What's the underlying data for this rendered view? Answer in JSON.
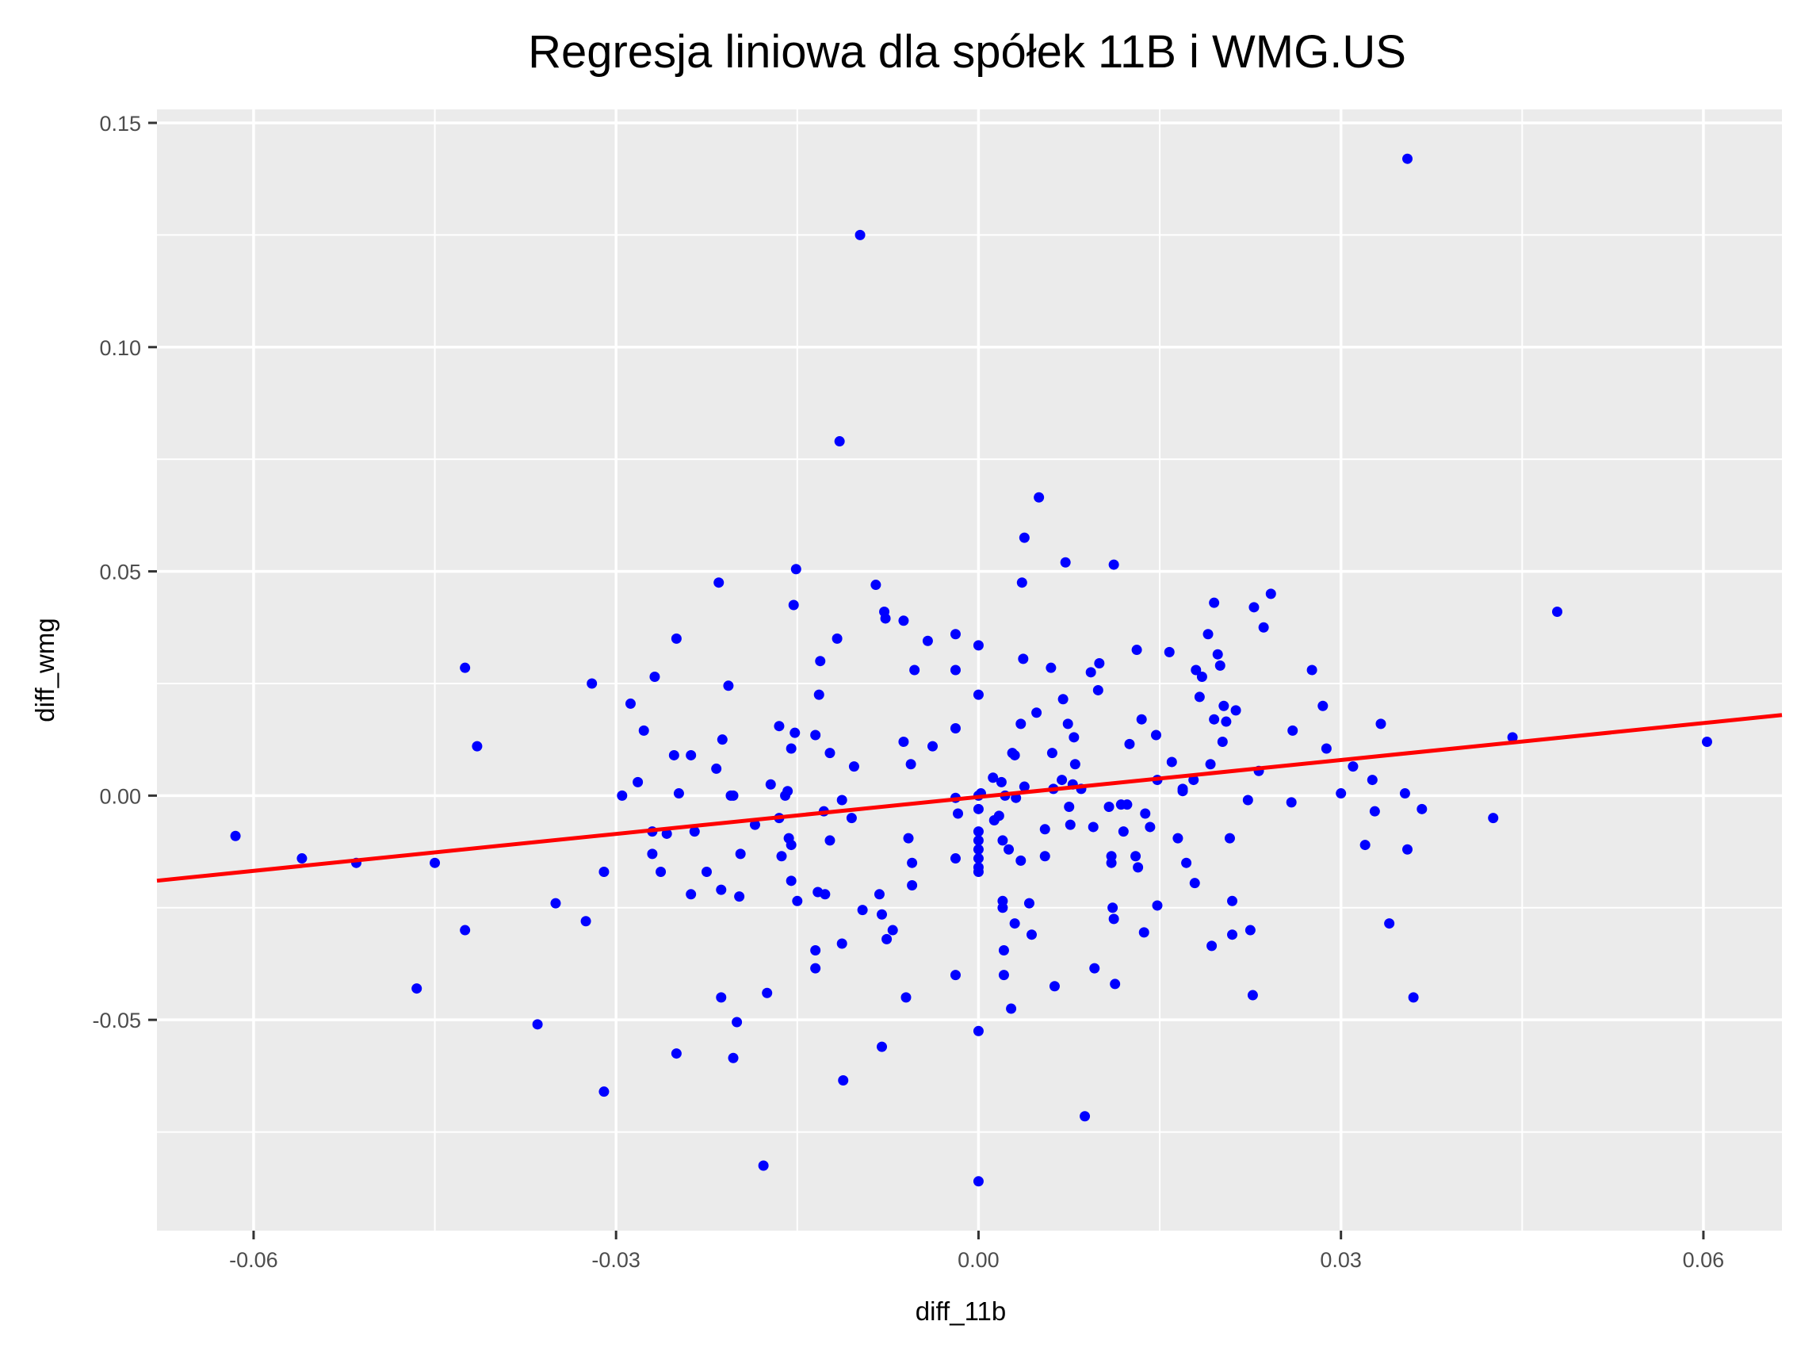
{
  "chart_data": {
    "type": "scatter",
    "title": "Regresja liniowa dla spółek 11B i WMG.US",
    "xlabel": "diff_11b",
    "ylabel": "diff_wmg",
    "xlim": [
      -0.068,
      0.0665
    ],
    "ylim": [
      -0.097,
      0.153
    ],
    "x_ticks": [
      -0.06,
      -0.03,
      0.0,
      0.03,
      0.06
    ],
    "x_tick_labels": [
      "-0.06",
      "-0.03",
      "0.00",
      "0.03",
      "0.06"
    ],
    "y_ticks": [
      -0.05,
      0.0,
      0.05,
      0.1,
      0.15
    ],
    "y_tick_labels": [
      "-0.05",
      "0.00",
      "0.05",
      "0.10",
      "0.15"
    ],
    "grid": true,
    "point_color": "#0000ff",
    "line_color": "#ff0000",
    "panel_color": "#ebebeb",
    "regression": {
      "intercept": -0.0003,
      "slope": 0.2746
    },
    "points": [
      {
        "x": -0.0615,
        "y": -0.009
      },
      {
        "x": -0.056,
        "y": -0.014
      },
      {
        "x": -0.0515,
        "y": -0.015
      },
      {
        "x": -0.0465,
        "y": -0.043
      },
      {
        "x": -0.045,
        "y": -0.015
      },
      {
        "x": -0.0425,
        "y": -0.03
      },
      {
        "x": -0.0425,
        "y": 0.0285
      },
      {
        "x": -0.0415,
        "y": 0.011
      },
      {
        "x": -0.0365,
        "y": -0.051
      },
      {
        "x": -0.035,
        "y": -0.024
      },
      {
        "x": -0.0325,
        "y": -0.028
      },
      {
        "x": -0.032,
        "y": 0.025
      },
      {
        "x": -0.031,
        "y": -0.017
      },
      {
        "x": -0.031,
        "y": -0.066
      },
      {
        "x": -0.0295,
        "y": 0.0
      },
      {
        "x": -0.0288,
        "y": 0.0205
      },
      {
        "x": -0.0282,
        "y": 0.003
      },
      {
        "x": -0.0277,
        "y": 0.0145
      },
      {
        "x": -0.027,
        "y": -0.013
      },
      {
        "x": -0.027,
        "y": -0.008
      },
      {
        "x": -0.0268,
        "y": 0.0265
      },
      {
        "x": -0.0263,
        "y": -0.017
      },
      {
        "x": -0.0258,
        "y": -0.0085
      },
      {
        "x": -0.0252,
        "y": 0.009
      },
      {
        "x": -0.025,
        "y": 0.035
      },
      {
        "x": -0.025,
        "y": -0.0575
      },
      {
        "x": -0.0248,
        "y": 0.0005
      },
      {
        "x": -0.0238,
        "y": 0.009
      },
      {
        "x": -0.0238,
        "y": -0.022
      },
      {
        "x": -0.0235,
        "y": -0.008
      },
      {
        "x": -0.0225,
        "y": -0.017
      },
      {
        "x": -0.0217,
        "y": 0.006
      },
      {
        "x": -0.0215,
        "y": 0.0475
      },
      {
        "x": -0.0213,
        "y": -0.045
      },
      {
        "x": -0.0213,
        "y": -0.021
      },
      {
        "x": -0.0212,
        "y": 0.0125
      },
      {
        "x": -0.0207,
        "y": 0.0245
      },
      {
        "x": -0.0205,
        "y": 0.0
      },
      {
        "x": -0.0203,
        "y": 0.0
      },
      {
        "x": -0.0203,
        "y": -0.0585
      },
      {
        "x": -0.02,
        "y": -0.0505
      },
      {
        "x": -0.0198,
        "y": -0.0225
      },
      {
        "x": -0.0197,
        "y": -0.013
      },
      {
        "x": -0.0185,
        "y": -0.0065
      },
      {
        "x": -0.0178,
        "y": -0.0825
      },
      {
        "x": -0.0175,
        "y": -0.044
      },
      {
        "x": -0.0172,
        "y": 0.0025
      },
      {
        "x": -0.0165,
        "y": -0.005
      },
      {
        "x": -0.0165,
        "y": 0.0155
      },
      {
        "x": -0.0163,
        "y": -0.0135
      },
      {
        "x": -0.016,
        "y": 0.0
      },
      {
        "x": -0.0158,
        "y": 0.001
      },
      {
        "x": -0.0157,
        "y": -0.0095
      },
      {
        "x": -0.0155,
        "y": -0.011
      },
      {
        "x": -0.0155,
        "y": -0.019
      },
      {
        "x": -0.0155,
        "y": 0.0105
      },
      {
        "x": -0.0153,
        "y": 0.0425
      },
      {
        "x": -0.0152,
        "y": 0.014
      },
      {
        "x": -0.0151,
        "y": 0.0505
      },
      {
        "x": -0.015,
        "y": -0.0235
      },
      {
        "x": -0.0135,
        "y": -0.0345
      },
      {
        "x": -0.0135,
        "y": -0.0385
      },
      {
        "x": -0.0135,
        "y": 0.0135
      },
      {
        "x": -0.0133,
        "y": -0.0215
      },
      {
        "x": -0.0132,
        "y": 0.0225
      },
      {
        "x": -0.0131,
        "y": 0.03
      },
      {
        "x": -0.0128,
        "y": -0.0035
      },
      {
        "x": -0.0127,
        "y": -0.022
      },
      {
        "x": -0.0123,
        "y": -0.01
      },
      {
        "x": -0.0123,
        "y": 0.0095
      },
      {
        "x": -0.0117,
        "y": 0.035
      },
      {
        "x": -0.0115,
        "y": 0.079
      },
      {
        "x": -0.0113,
        "y": -0.001
      },
      {
        "x": -0.0113,
        "y": -0.033
      },
      {
        "x": -0.0112,
        "y": -0.0635
      },
      {
        "x": -0.0105,
        "y": -0.005
      },
      {
        "x": -0.0103,
        "y": 0.0065
      },
      {
        "x": -0.0098,
        "y": 0.125
      },
      {
        "x": -0.0096,
        "y": -0.0255
      },
      {
        "x": -0.0085,
        "y": 0.047
      },
      {
        "x": -0.0082,
        "y": -0.022
      },
      {
        "x": -0.008,
        "y": -0.0265
      },
      {
        "x": -0.008,
        "y": -0.056
      },
      {
        "x": -0.0078,
        "y": 0.041
      },
      {
        "x": -0.0077,
        "y": 0.0395
      },
      {
        "x": -0.0076,
        "y": -0.032
      },
      {
        "x": -0.0071,
        "y": -0.03
      },
      {
        "x": -0.0062,
        "y": 0.039
      },
      {
        "x": -0.0062,
        "y": 0.012
      },
      {
        "x": -0.006,
        "y": -0.045
      },
      {
        "x": -0.0058,
        "y": -0.0095
      },
      {
        "x": -0.0056,
        "y": 0.007
      },
      {
        "x": -0.0055,
        "y": -0.015
      },
      {
        "x": -0.0055,
        "y": -0.02
      },
      {
        "x": -0.0053,
        "y": 0.028
      },
      {
        "x": -0.0042,
        "y": 0.0345
      },
      {
        "x": -0.0038,
        "y": 0.011
      },
      {
        "x": -0.0019,
        "y": -0.0005
      },
      {
        "x": -0.0019,
        "y": -0.014
      },
      {
        "x": -0.0019,
        "y": 0.036
      },
      {
        "x": -0.0019,
        "y": 0.028
      },
      {
        "x": -0.0019,
        "y": 0.015
      },
      {
        "x": -0.0019,
        "y": -0.04
      },
      {
        "x": -0.0017,
        "y": -0.004
      },
      {
        "x": 0.0,
        "y": 0.0
      },
      {
        "x": 0.0,
        "y": -0.003
      },
      {
        "x": 0.0,
        "y": -0.008
      },
      {
        "x": 0.0,
        "y": -0.01
      },
      {
        "x": 0.0,
        "y": -0.012
      },
      {
        "x": 0.0,
        "y": -0.014
      },
      {
        "x": 0.0,
        "y": -0.016
      },
      {
        "x": 0.0,
        "y": -0.017
      },
      {
        "x": 0.0,
        "y": 0.0225
      },
      {
        "x": 0.0,
        "y": 0.0335
      },
      {
        "x": 0.0,
        "y": -0.0525
      },
      {
        "x": 0.0,
        "y": -0.086
      },
      {
        "x": 0.0002,
        "y": 0.0005
      },
      {
        "x": 0.0012,
        "y": 0.004
      },
      {
        "x": 0.0013,
        "y": -0.0055
      },
      {
        "x": 0.0017,
        "y": -0.0045
      },
      {
        "x": 0.0019,
        "y": 0.003
      },
      {
        "x": 0.002,
        "y": -0.0235
      },
      {
        "x": 0.002,
        "y": -0.01
      },
      {
        "x": 0.002,
        "y": -0.025
      },
      {
        "x": 0.0021,
        "y": -0.0345
      },
      {
        "x": 0.0021,
        "y": -0.04
      },
      {
        "x": 0.0022,
        "y": 0.0
      },
      {
        "x": 0.0025,
        "y": -0.012
      },
      {
        "x": 0.0027,
        "y": -0.0475
      },
      {
        "x": 0.0028,
        "y": 0.0095
      },
      {
        "x": 0.003,
        "y": -0.0285
      },
      {
        "x": 0.003,
        "y": 0.009
      },
      {
        "x": 0.0031,
        "y": -0.0005
      },
      {
        "x": 0.0035,
        "y": -0.0145
      },
      {
        "x": 0.0035,
        "y": 0.016
      },
      {
        "x": 0.0036,
        "y": 0.0475
      },
      {
        "x": 0.0037,
        "y": 0.0305
      },
      {
        "x": 0.0038,
        "y": 0.002
      },
      {
        "x": 0.0038,
        "y": 0.0575
      },
      {
        "x": 0.0042,
        "y": -0.024
      },
      {
        "x": 0.0044,
        "y": -0.031
      },
      {
        "x": 0.0048,
        "y": 0.0185
      },
      {
        "x": 0.005,
        "y": 0.0665
      },
      {
        "x": 0.0055,
        "y": -0.0075
      },
      {
        "x": 0.0055,
        "y": -0.0135
      },
      {
        "x": 0.006,
        "y": 0.0285
      },
      {
        "x": 0.0061,
        "y": 0.0095
      },
      {
        "x": 0.0062,
        "y": 0.0015
      },
      {
        "x": 0.0063,
        "y": -0.0425
      },
      {
        "x": 0.0069,
        "y": 0.0035
      },
      {
        "x": 0.007,
        "y": 0.0215
      },
      {
        "x": 0.0072,
        "y": 0.052
      },
      {
        "x": 0.0074,
        "y": 0.016
      },
      {
        "x": 0.0075,
        "y": -0.0025
      },
      {
        "x": 0.0076,
        "y": -0.0065
      },
      {
        "x": 0.0078,
        "y": 0.0025
      },
      {
        "x": 0.0079,
        "y": 0.013
      },
      {
        "x": 0.008,
        "y": 0.007
      },
      {
        "x": 0.0085,
        "y": 0.0015
      },
      {
        "x": 0.0088,
        "y": -0.0715
      },
      {
        "x": 0.0093,
        "y": 0.0275
      },
      {
        "x": 0.0095,
        "y": -0.007
      },
      {
        "x": 0.0096,
        "y": -0.0385
      },
      {
        "x": 0.0099,
        "y": 0.0235
      },
      {
        "x": 0.01,
        "y": 0.0295
      },
      {
        "x": 0.0108,
        "y": -0.0025
      },
      {
        "x": 0.011,
        "y": -0.0135
      },
      {
        "x": 0.011,
        "y": -0.015
      },
      {
        "x": 0.0111,
        "y": -0.025
      },
      {
        "x": 0.0112,
        "y": 0.0515
      },
      {
        "x": 0.0112,
        "y": -0.0275
      },
      {
        "x": 0.0113,
        "y": -0.042
      },
      {
        "x": 0.0118,
        "y": -0.002
      },
      {
        "x": 0.012,
        "y": -0.008
      },
      {
        "x": 0.0123,
        "y": -0.002
      },
      {
        "x": 0.0125,
        "y": 0.0115
      },
      {
        "x": 0.013,
        "y": -0.0135
      },
      {
        "x": 0.0131,
        "y": 0.0325
      },
      {
        "x": 0.0132,
        "y": -0.016
      },
      {
        "x": 0.0135,
        "y": 0.017
      },
      {
        "x": 0.0137,
        "y": -0.0305
      },
      {
        "x": 0.0138,
        "y": -0.004
      },
      {
        "x": 0.0142,
        "y": -0.007
      },
      {
        "x": 0.0147,
        "y": 0.0135
      },
      {
        "x": 0.0148,
        "y": -0.0245
      },
      {
        "x": 0.0148,
        "y": 0.0035
      },
      {
        "x": 0.0158,
        "y": 0.032
      },
      {
        "x": 0.016,
        "y": 0.0075
      },
      {
        "x": 0.0165,
        "y": -0.0095
      },
      {
        "x": 0.0169,
        "y": 0.0015
      },
      {
        "x": 0.0169,
        "y": 0.001
      },
      {
        "x": 0.0172,
        "y": -0.015
      },
      {
        "x": 0.0178,
        "y": 0.0035
      },
      {
        "x": 0.0179,
        "y": -0.0195
      },
      {
        "x": 0.018,
        "y": 0.028
      },
      {
        "x": 0.0183,
        "y": 0.022
      },
      {
        "x": 0.0185,
        "y": 0.0265
      },
      {
        "x": 0.019,
        "y": 0.036
      },
      {
        "x": 0.0192,
        "y": 0.007
      },
      {
        "x": 0.0193,
        "y": -0.0335
      },
      {
        "x": 0.0195,
        "y": 0.043
      },
      {
        "x": 0.0195,
        "y": 0.017
      },
      {
        "x": 0.0198,
        "y": 0.0315
      },
      {
        "x": 0.02,
        "y": 0.029
      },
      {
        "x": 0.0202,
        "y": 0.012
      },
      {
        "x": 0.0203,
        "y": 0.02
      },
      {
        "x": 0.0205,
        "y": 0.0165
      },
      {
        "x": 0.0208,
        "y": -0.0095
      },
      {
        "x": 0.021,
        "y": -0.0235
      },
      {
        "x": 0.021,
        "y": -0.031
      },
      {
        "x": 0.0213,
        "y": 0.019
      },
      {
        "x": 0.0223,
        "y": -0.001
      },
      {
        "x": 0.0225,
        "y": -0.03
      },
      {
        "x": 0.0227,
        "y": -0.0445
      },
      {
        "x": 0.0228,
        "y": 0.042
      },
      {
        "x": 0.0232,
        "y": 0.0055
      },
      {
        "x": 0.0236,
        "y": 0.0375
      },
      {
        "x": 0.0242,
        "y": 0.045
      },
      {
        "x": 0.0259,
        "y": -0.0015
      },
      {
        "x": 0.026,
        "y": 0.0145
      },
      {
        "x": 0.0276,
        "y": 0.028
      },
      {
        "x": 0.0285,
        "y": 0.02
      },
      {
        "x": 0.0288,
        "y": 0.0105
      },
      {
        "x": 0.03,
        "y": 0.0005
      },
      {
        "x": 0.031,
        "y": 0.0065
      },
      {
        "x": 0.032,
        "y": -0.011
      },
      {
        "x": 0.0326,
        "y": 0.0035
      },
      {
        "x": 0.0328,
        "y": -0.0035
      },
      {
        "x": 0.0333,
        "y": 0.016
      },
      {
        "x": 0.034,
        "y": -0.0285
      },
      {
        "x": 0.0353,
        "y": 0.0005
      },
      {
        "x": 0.0355,
        "y": 0.142
      },
      {
        "x": 0.0355,
        "y": -0.012
      },
      {
        "x": 0.036,
        "y": -0.045
      },
      {
        "x": 0.0367,
        "y": -0.003
      },
      {
        "x": 0.0426,
        "y": -0.005
      },
      {
        "x": 0.0442,
        "y": 0.013
      },
      {
        "x": 0.0479,
        "y": 0.041
      },
      {
        "x": 0.0603,
        "y": 0.012
      }
    ]
  }
}
